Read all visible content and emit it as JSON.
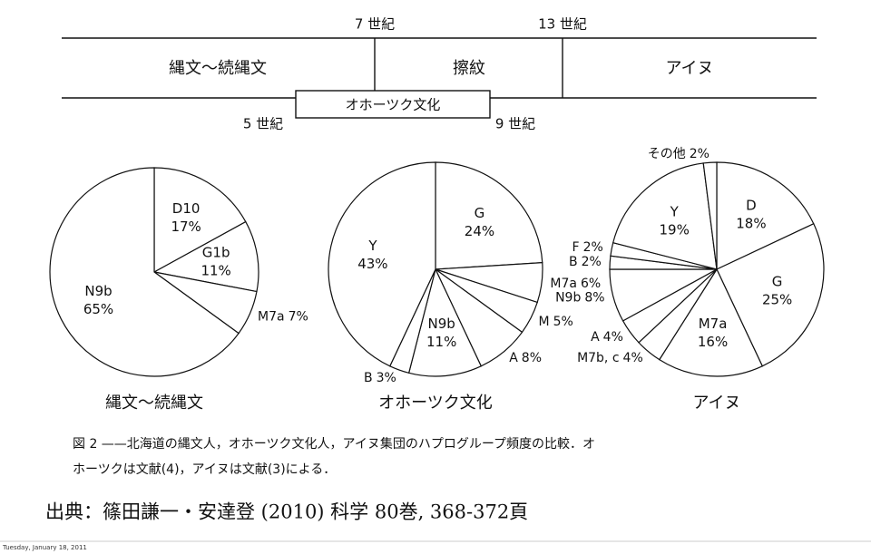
{
  "timeline": {
    "centuries": [
      "7 世紀",
      "13 世紀",
      "5 世紀",
      "9 世紀"
    ],
    "periods": [
      "縄文〜続縄文",
      "擦紋",
      "アイヌ",
      "オホーツク文化"
    ]
  },
  "chart_data": [
    {
      "type": "pie",
      "title": "縄文〜続縄文",
      "categories": [
        "D10",
        "G1b",
        "M7a",
        "N9b"
      ],
      "values": [
        17,
        11,
        7,
        65
      ],
      "value_labels": [
        "17%",
        "11%",
        "7%",
        "65%"
      ]
    },
    {
      "type": "pie",
      "title": "オホーツク文化",
      "categories": [
        "G",
        "M7a",
        "M",
        "A",
        "N9b",
        "B",
        "Y"
      ],
      "values": [
        24,
        6,
        5,
        8,
        11,
        3,
        43
      ],
      "value_labels": [
        "24%",
        "6%",
        "5%",
        "8%",
        "11%",
        "3%",
        "43%"
      ]
    },
    {
      "type": "pie",
      "title": "アイヌ",
      "categories": [
        "D",
        "G",
        "M7a",
        "M7b, c",
        "A",
        "N9b",
        "B",
        "F",
        "Y",
        "その他"
      ],
      "values": [
        18,
        25,
        16,
        4,
        4,
        8,
        2,
        2,
        19,
        2
      ],
      "value_labels": [
        "18%",
        "25%",
        "16%",
        "4%",
        "4%",
        "8%",
        "2%",
        "2%",
        "19%",
        "2%"
      ]
    }
  ],
  "caption": [
    "図 2 ——北海道の縄文人，オホーツク文化人，アイヌ集団のハプログループ頻度の比較．オ",
    "ホーツクは文献(4)，アイヌは文献(3)による．"
  ],
  "source": "出典：篠田謙一・安達登 (2010) 科学 80巻, 368-372頁",
  "timestamp": "Tuesday, January 18, 2011"
}
